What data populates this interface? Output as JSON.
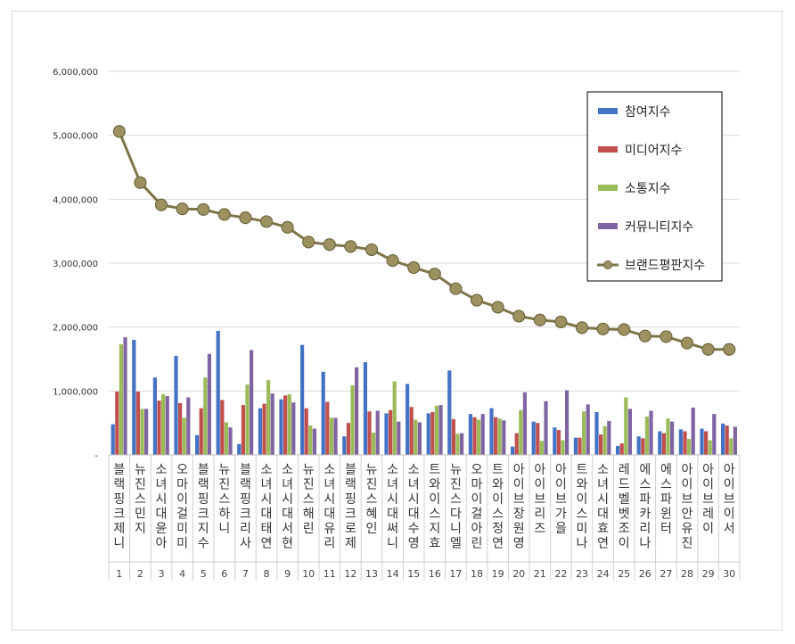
{
  "chart_data": {
    "type": "bar",
    "title": "",
    "xlabel": "",
    "ylabel": "",
    "ylim": [
      0,
      6000000
    ],
    "yticks": [
      "-",
      "1,000,000",
      "2,000,000",
      "3,000,000",
      "4,000,000",
      "5,000,000",
      "6,000,000"
    ],
    "legend_position": "top-right",
    "grid": true,
    "categories": [
      "블랙핑크제니",
      "뉴진스민지",
      "소녀시대윤아",
      "오마이걸미미",
      "블랙핑크지수",
      "뉴진스하니",
      "블랙핑크리사",
      "소녀시대태연",
      "소녀시대서현",
      "뉴진스해린",
      "소녀시대유리",
      "블랙핑크로제",
      "뉴진스혜인",
      "소녀시대써니",
      "소녀시대수영",
      "트와이스지효",
      "뉴진스다니엘",
      "오마이걸아린",
      "트와이스정연",
      "아이브장원영",
      "아이브리즈",
      "아이브가을",
      "트와이스미나",
      "소녀시대효연",
      "레드벨벳조이",
      "에스파카리나",
      "에스파윈터",
      "아이브안유진",
      "아이브레이",
      "아이브이서"
    ],
    "ranks": [
      "1",
      "2",
      "3",
      "4",
      "5",
      "6",
      "7",
      "8",
      "9",
      "10",
      "11",
      "12",
      "13",
      "14",
      "15",
      "16",
      "17",
      "18",
      "19",
      "20",
      "21",
      "22",
      "23",
      "24",
      "25",
      "26",
      "27",
      "28",
      "29",
      "30"
    ],
    "series": [
      {
        "name": "참여지수",
        "kind": "bar",
        "color": "#4472c4",
        "values": [
          480000,
          1800000,
          1210000,
          1550000,
          310000,
          1940000,
          170000,
          730000,
          870000,
          1720000,
          1300000,
          290000,
          1450000,
          650000,
          1110000,
          650000,
          1320000,
          640000,
          730000,
          130000,
          520000,
          430000,
          270000,
          670000,
          140000,
          290000,
          370000,
          400000,
          410000,
          490000
        ]
      },
      {
        "name": "미디어지수",
        "kind": "bar",
        "color": "#c0504d",
        "values": [
          990000,
          990000,
          850000,
          810000,
          730000,
          860000,
          780000,
          800000,
          930000,
          730000,
          830000,
          500000,
          680000,
          700000,
          750000,
          670000,
          560000,
          590000,
          590000,
          340000,
          500000,
          390000,
          270000,
          320000,
          180000,
          260000,
          340000,
          370000,
          370000,
          460000
        ]
      },
      {
        "name": "소통지수",
        "kind": "bar",
        "color": "#9bbb59",
        "values": [
          1730000,
          720000,
          950000,
          580000,
          1210000,
          510000,
          1100000,
          1170000,
          950000,
          460000,
          580000,
          1090000,
          350000,
          1150000,
          550000,
          770000,
          330000,
          550000,
          570000,
          700000,
          220000,
          230000,
          680000,
          450000,
          900000,
          600000,
          570000,
          250000,
          230000,
          260000
        ]
      },
      {
        "name": "커뮤니티지수",
        "kind": "bar",
        "color": "#8064a2",
        "values": [
          1840000,
          720000,
          920000,
          900000,
          1580000,
          430000,
          1640000,
          960000,
          820000,
          410000,
          580000,
          1370000,
          690000,
          520000,
          510000,
          780000,
          340000,
          640000,
          540000,
          980000,
          840000,
          1010000,
          790000,
          530000,
          720000,
          690000,
          520000,
          740000,
          640000,
          440000
        ]
      },
      {
        "name": "브랜드평판지수",
        "kind": "line",
        "color": "#7f7448",
        "values": [
          5060000,
          4260000,
          3910000,
          3850000,
          3840000,
          3760000,
          3710000,
          3650000,
          3560000,
          3330000,
          3290000,
          3260000,
          3210000,
          3040000,
          2930000,
          2830000,
          2600000,
          2420000,
          2310000,
          2170000,
          2110000,
          2080000,
          1990000,
          1970000,
          1960000,
          1860000,
          1850000,
          1750000,
          1650000,
          1650000
        ]
      }
    ]
  }
}
